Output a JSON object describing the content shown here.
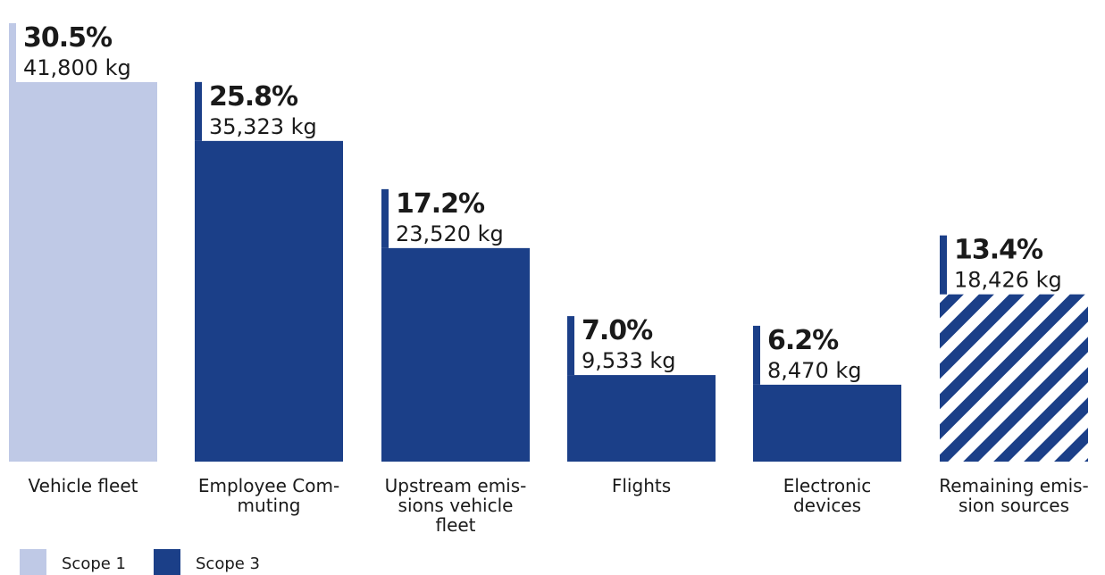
{
  "chart_data": {
    "type": "bar",
    "title": "",
    "xlabel": "",
    "ylabel": "",
    "ylim": [
      0,
      41800
    ],
    "grid": false,
    "legend_placement": "bottom-left",
    "categories": [
      [
        "Vehicle fleet"
      ],
      [
        "Employee Com-",
        "muting"
      ],
      [
        "Upstream emis-",
        "sions vehicle",
        "fleet"
      ],
      [
        "Flights"
      ],
      [
        "Electronic",
        "devices"
      ],
      [
        "Remaining emis-",
        "sion sources"
      ]
    ],
    "values": [
      41800,
      35323,
      23520,
      9533,
      8470,
      18426
    ],
    "percent_labels": [
      "30.5%",
      "25.8%",
      "17.2%",
      "7.0%",
      "6.2%",
      "13.4%"
    ],
    "value_labels": [
      "41,800 kg",
      "35,323 kg",
      "23,520 kg",
      "9,533 kg",
      "8,470 kg",
      "18,426 kg"
    ],
    "scope": [
      1,
      3,
      3,
      3,
      3,
      3
    ],
    "hatched": [
      false,
      false,
      false,
      false,
      false,
      true
    ],
    "legend": [
      {
        "name": "Scope 1",
        "color": "#bfc9e6"
      },
      {
        "name": "Scope 3",
        "color": "#1b3f88"
      }
    ],
    "colors": {
      "scope1": "#bfc9e6",
      "scope3": "#1b3f88",
      "hatch_bg": "#ffffff"
    }
  }
}
